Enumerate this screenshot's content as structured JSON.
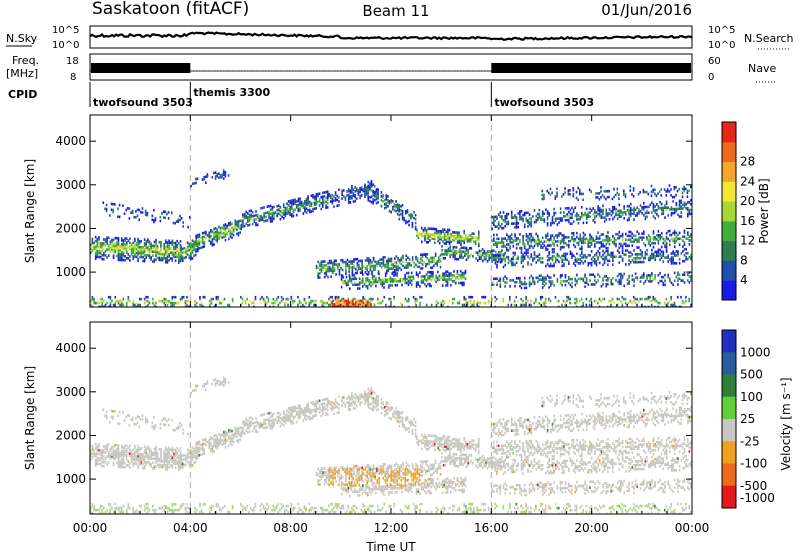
{
  "header": {
    "station": "Saskatoon (fitACF)",
    "beam": "Beam 11",
    "date": "01/Jun/2016"
  },
  "top_panels": {
    "nsky_label": "N.Sky",
    "nsky_ticks": [
      "10^5",
      "10^0"
    ],
    "nsearch_label": "N.Search",
    "nsearch_ticks": [
      "10^5",
      "10^0"
    ],
    "freq_label": "Freq.",
    "freq_unit": "[MHz]",
    "freq_ticks": [
      "18",
      "8"
    ],
    "nave_label": "Nave",
    "nave_ticks": [
      "60",
      "0"
    ],
    "cpid_label": "CPID",
    "cpid_segments": [
      {
        "name": "twofsound 3503",
        "start_h": 0,
        "end_h": 4
      },
      {
        "name": "themis 3300",
        "start_h": 4,
        "end_h": 16
      },
      {
        "name": "twofsound 3503",
        "start_h": 16,
        "end_h": 24
      }
    ]
  },
  "chart_data": [
    {
      "type": "heatmap",
      "name": "power",
      "ylabel": "Slant Range [km]",
      "yticks": [
        "1000",
        "2000",
        "3000",
        "4000"
      ],
      "ylim": [
        200,
        4600
      ],
      "xlim_hours": [
        0,
        24
      ],
      "colorbar_label": "Power [dB]",
      "colorbar_ticks": [
        "4",
        "8",
        "12",
        "16",
        "20",
        "24",
        "28"
      ],
      "colors": [
        "#1a1ae6",
        "#1f4fa8",
        "#2d7d4f",
        "#3fae3a",
        "#a8d632",
        "#f2e634",
        "#f2a62a",
        "#ee6a1c",
        "#e6261a"
      ]
    },
    {
      "type": "heatmap",
      "name": "velocity",
      "ylabel": "Slant Range [km]",
      "yticks": [
        "1000",
        "2000",
        "3000",
        "4000"
      ],
      "ylim": [
        200,
        4600
      ],
      "xlim_hours": [
        0,
        24
      ],
      "colorbar_label": "Velocity [m s⁻¹]",
      "colorbar_ticks": [
        "1000",
        "500",
        "100",
        "25",
        "-25",
        "-100",
        "-500",
        "-1000"
      ],
      "colors": [
        "#1f2fc0",
        "#2a5d9c",
        "#2f7f3a",
        "#5fcf3a",
        "#c8c8c0",
        "#f0a020",
        "#ee6a1c",
        "#e61a1a"
      ]
    }
  ],
  "xaxis": {
    "ticks": [
      "00:00",
      "04:00",
      "08:00",
      "12:00",
      "16:00",
      "20:00",
      "00:00"
    ],
    "label": "Time UT"
  }
}
